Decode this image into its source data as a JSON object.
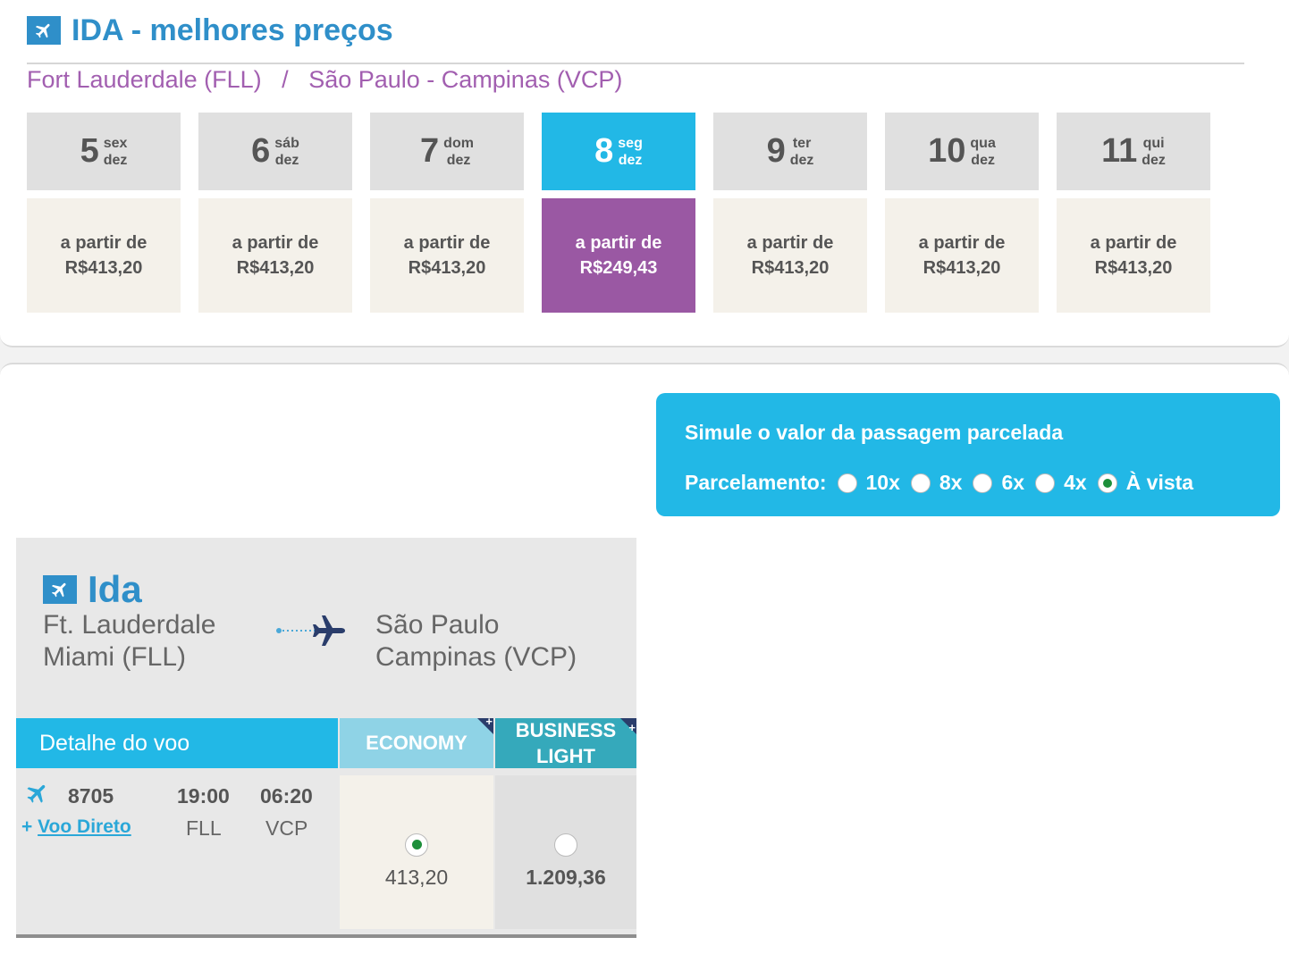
{
  "header": {
    "title": "IDA - melhores preços",
    "route_origin": "Fort Lauderdale (FLL)",
    "route_separator": "/",
    "route_destination": "São Paulo - Campinas (VCP)"
  },
  "days": [
    {
      "num": "5",
      "weekday": "sex",
      "month": "dez",
      "label": "a partir de",
      "price": "R$413,20",
      "selected": false
    },
    {
      "num": "6",
      "weekday": "sáb",
      "month": "dez",
      "label": "a partir de",
      "price": "R$413,20",
      "selected": false
    },
    {
      "num": "7",
      "weekday": "dom",
      "month": "dez",
      "label": "a partir de",
      "price": "R$413,20",
      "selected": false
    },
    {
      "num": "8",
      "weekday": "seg",
      "month": "dez",
      "label": "a partir de",
      "price": "R$249,43",
      "selected": true
    },
    {
      "num": "9",
      "weekday": "ter",
      "month": "dez",
      "label": "a partir de",
      "price": "R$413,20",
      "selected": false
    },
    {
      "num": "10",
      "weekday": "qua",
      "month": "dez",
      "label": "a partir de",
      "price": "R$413,20",
      "selected": false
    },
    {
      "num": "11",
      "weekday": "qui",
      "month": "dez",
      "label": "a partir de",
      "price": "R$413,20",
      "selected": false
    }
  ],
  "simulator": {
    "title": "Simule o valor da passagem parcelada",
    "label": "Parcelamento:",
    "options": [
      {
        "label": "10x",
        "checked": false
      },
      {
        "label": "8x",
        "checked": false
      },
      {
        "label": "6x",
        "checked": false
      },
      {
        "label": "4x",
        "checked": false
      },
      {
        "label": "À vista",
        "checked": true
      }
    ]
  },
  "flight": {
    "title": "Ida",
    "origin_line1": "Ft. Lauderdale",
    "origin_line2": "Miami (FLL)",
    "dest_line1": "São Paulo",
    "dest_line2": "Campinas (VCP)",
    "table": {
      "detail_header": "Detalhe do voo",
      "economy_header": "ECONOMY",
      "business_header_line1": "BUSINESS",
      "business_header_line2": "LIGHT",
      "corner_plus": "+"
    },
    "row": {
      "number": "8705",
      "dep_time": "19:00",
      "arr_time": "06:20",
      "dep_code": "FLL",
      "arr_code": "VCP",
      "direct_plus": "+",
      "direct_label": "Voo Direto",
      "economy_price": "413,20",
      "business_price": "1.209,36",
      "economy_selected": true,
      "business_selected": false
    }
  },
  "colors": {
    "brand_blue": "#2f8fc9",
    "accent_cyan": "#22b8e6",
    "selected_purple": "#9a58a3",
    "route_purple": "#a25fb0"
  }
}
